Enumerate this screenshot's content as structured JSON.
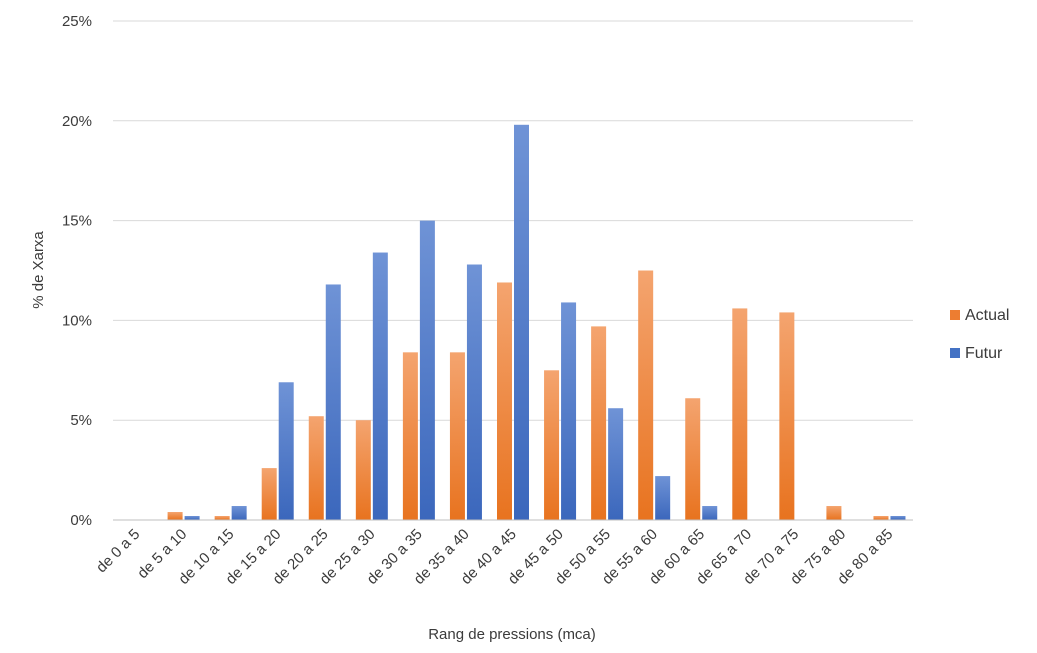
{
  "chart_data": {
    "type": "bar",
    "title": "",
    "xlabel": "Rang de pressions (mca)",
    "ylabel": "% de Xarxa",
    "ylim": [
      0,
      25
    ],
    "y_ticks": [
      0,
      5,
      10,
      15,
      20,
      25
    ],
    "y_tick_labels": [
      "0%",
      "5%",
      "10%",
      "15%",
      "20%",
      "25%"
    ],
    "grid": true,
    "legend_position": "right",
    "categories": [
      "de 0 a 5",
      "de 5 a 10",
      "de 10 a 15",
      "de 15 a 20",
      "de 20 a 25",
      "de 25 a 30",
      "de 30 a 35",
      "de 35 a 40",
      "de 40 a 45",
      "de 45 a 50",
      "de 50 a 55",
      "de 55 a 60",
      "de 60 a 65",
      "de 65 a 70",
      "de 70 a 75",
      "de 75 a 80",
      "de 80 a 85"
    ],
    "series": [
      {
        "name": "Actual",
        "color": "#ED7D31",
        "values": [
          0,
          0.4,
          0.2,
          2.6,
          5.2,
          5.0,
          8.4,
          8.4,
          11.9,
          7.5,
          9.7,
          12.5,
          6.1,
          10.6,
          10.4,
          0.7,
          0.2
        ]
      },
      {
        "name": "Futur",
        "color": "#4472C4",
        "values": [
          0,
          0.2,
          0.7,
          6.9,
          11.8,
          13.4,
          15.0,
          12.8,
          19.8,
          10.9,
          5.6,
          2.2,
          0.7,
          0,
          0,
          0,
          0.2
        ]
      }
    ]
  }
}
